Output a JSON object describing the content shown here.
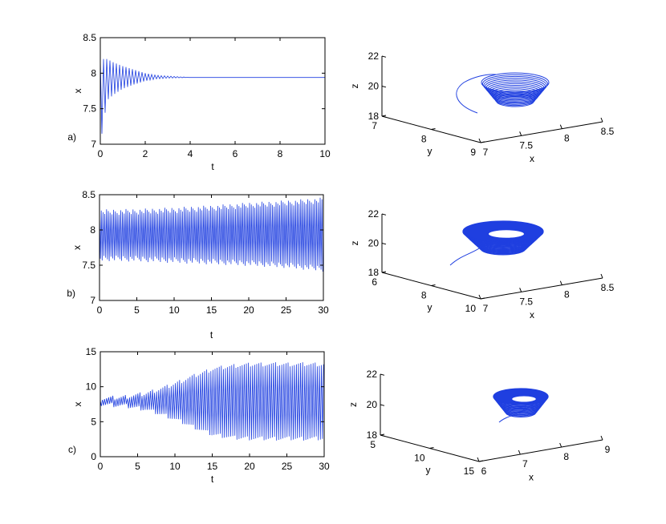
{
  "colors": {
    "signal": "#1f3fe0",
    "axis": "#000000",
    "background": "#ffffff"
  },
  "chart_data": [
    {
      "type": "line",
      "panel_label": "a)",
      "xlabel": "t",
      "ylabel": "x",
      "xlim": [
        0,
        10
      ],
      "ylim": [
        7,
        8.5
      ],
      "xticks": [
        0,
        2,
        4,
        6,
        8,
        10
      ],
      "yticks": [
        7,
        7.5,
        8,
        8.5
      ],
      "xtick_labels": [
        "0",
        "2",
        "4",
        "6",
        "8",
        "10"
      ],
      "ytick_labels": [
        "7",
        "7.5",
        "8",
        "8.5"
      ],
      "series": [
        {
          "x": [
            0,
            0.3,
            0.6,
            1,
            1.5,
            2,
            2.5,
            3,
            3.5,
            4,
            10
          ],
          "upper": [
            8.2,
            8.2,
            8.15,
            8.1,
            8.05,
            8.0,
            7.97,
            7.96,
            7.95,
            7.94,
            7.94
          ],
          "lower": [
            7.0,
            7.62,
            7.7,
            7.78,
            7.84,
            7.89,
            7.92,
            7.93,
            7.935,
            7.94,
            7.94
          ]
        }
      ]
    },
    {
      "type": "line",
      "panel_label": "b)",
      "xlabel": "t",
      "ylabel": "x",
      "xlim": [
        0,
        30
      ],
      "ylim": [
        7,
        8.5
      ],
      "xticks": [
        0,
        5,
        10,
        15,
        20,
        25,
        30
      ],
      "yticks": [
        7,
        7.5,
        8,
        8.5
      ],
      "xtick_labels": [
        "0",
        "5",
        "10",
        "15",
        "20",
        "25",
        "30"
      ],
      "ytick_labels": [
        "7",
        "7.5",
        "8",
        "8.5"
      ],
      "series": [
        {
          "x": [
            0,
            5,
            10,
            15,
            20,
            25,
            30
          ],
          "upper": [
            8.25,
            8.26,
            8.28,
            8.31,
            8.35,
            8.38,
            8.42
          ],
          "lower": [
            7.6,
            7.59,
            7.57,
            7.55,
            7.53,
            7.5,
            7.45
          ]
        }
      ]
    },
    {
      "type": "line",
      "panel_label": "c)",
      "xlabel": "t",
      "ylabel": "x",
      "xlim": [
        0,
        30
      ],
      "ylim": [
        0,
        15
      ],
      "xticks": [
        0,
        5,
        10,
        15,
        20,
        25,
        30
      ],
      "yticks": [
        0,
        5,
        10,
        15
      ],
      "xtick_labels": [
        "0",
        "5",
        "10",
        "15",
        "20",
        "25",
        "30"
      ],
      "ytick_labels": [
        "0",
        "5",
        "10",
        "15"
      ],
      "series": [
        {
          "x": [
            0,
            3,
            6,
            9,
            12,
            15,
            18,
            21,
            30
          ],
          "upper": [
            8.3,
            8.5,
            9.0,
            10.0,
            11.3,
            12.5,
            13.0,
            13.2,
            13.2
          ],
          "lower": [
            7.5,
            7.3,
            6.8,
            5.8,
            4.5,
            3.2,
            2.7,
            2.6,
            2.6
          ]
        }
      ]
    },
    {
      "type": "line",
      "subtype": "3d-trajectory",
      "xlabel": "x",
      "ylabel": "y",
      "zlabel": "z",
      "xticks": [
        7,
        7.5,
        8,
        8.5
      ],
      "yticks": [
        7,
        8,
        9
      ],
      "zticks": [
        18,
        20,
        22
      ],
      "xtick_labels": [
        "7",
        "7.5",
        "8",
        "8.5"
      ],
      "ytick_labels": [
        "7",
        "8",
        "9"
      ],
      "ztick_labels": [
        "18",
        "20",
        "22"
      ]
    },
    {
      "type": "line",
      "subtype": "3d-trajectory",
      "xlabel": "x",
      "ylabel": "y",
      "zlabel": "z",
      "xticks": [
        7,
        7.5,
        8,
        8.5
      ],
      "yticks": [
        6,
        8,
        10
      ],
      "zticks": [
        18,
        20,
        22
      ],
      "xtick_labels": [
        "7",
        "7.5",
        "8",
        "8.5"
      ],
      "ytick_labels": [
        "6",
        "8",
        "10"
      ],
      "ztick_labels": [
        "18",
        "20",
        "22"
      ]
    },
    {
      "type": "line",
      "subtype": "3d-trajectory",
      "xlabel": "x",
      "ylabel": "y",
      "zlabel": "z",
      "xticks": [
        6,
        7,
        8,
        9
      ],
      "yticks": [
        5,
        10,
        15
      ],
      "zticks": [
        18,
        20,
        22
      ],
      "xtick_labels": [
        "6",
        "7",
        "8",
        "9"
      ],
      "ytick_labels": [
        "5",
        "10",
        "15"
      ],
      "ztick_labels": [
        "18",
        "20",
        "22"
      ]
    }
  ]
}
